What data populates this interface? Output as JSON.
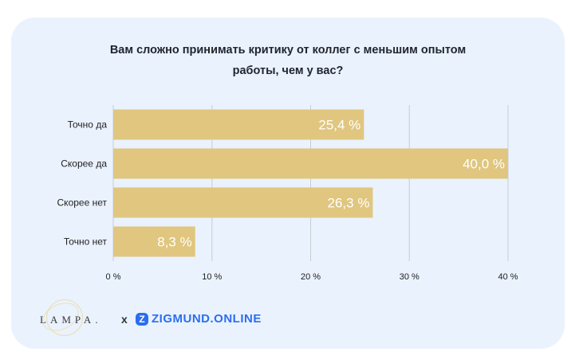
{
  "chart_data": {
    "type": "bar",
    "orientation": "horizontal",
    "title_lines": [
      "Вам сложно принимать критику от коллег с меньшим опытом",
      "работы, чем у вас?"
    ],
    "categories": [
      "Точно да",
      "Скорее да",
      "Скорее нет",
      "Точно нет"
    ],
    "values": [
      25.4,
      40.0,
      26.3,
      8.3
    ],
    "value_labels": [
      "25,4 %",
      "40,0 %",
      "26,3 %",
      "8,3 %"
    ],
    "xlim": [
      0,
      40
    ],
    "x_ticks": [
      0,
      10,
      20,
      30,
      40
    ],
    "x_tick_labels": [
      "0 %",
      "10 %",
      "20 %",
      "30 %",
      "40 %"
    ],
    "grid": "vertical",
    "bar_color": "#e0c67f"
  },
  "footer": {
    "brand_left": "LAMPA.",
    "separator": "x",
    "brand_right": "ZIGMUND.ONLINE",
    "accent_color": "#2b6ef0"
  }
}
